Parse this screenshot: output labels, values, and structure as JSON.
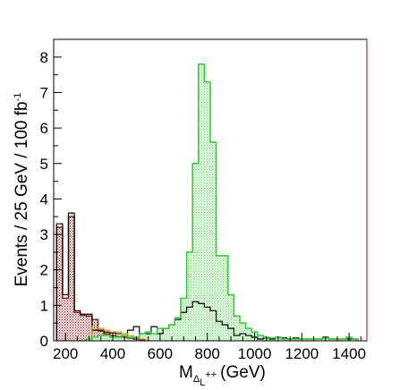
{
  "chart_data": {
    "type": "bar",
    "title": "",
    "xlabel": "M",
    "xlabel_sub": "Δ",
    "xlabel_subsub": "L",
    "xlabel_sup": "++",
    "xlabel_unit": "(GeV)",
    "ylabel": "Events / 25 GeV / 100 fb",
    "ylabel_sup": "-1",
    "xlim": [
      150,
      1475
    ],
    "ylim": [
      0,
      8.5
    ],
    "xticks": [
      "200",
      "400",
      "600",
      "800",
      "1000",
      "1200",
      "1400"
    ],
    "yticks": [
      "0",
      "1",
      "2",
      "3",
      "4",
      "5",
      "6",
      "7",
      "8"
    ],
    "bin_width": 25,
    "series": [
      {
        "color": "#8b1a1a",
        "fill": "hatched",
        "x": [
          175,
          200,
          225,
          250,
          275,
          300,
          325,
          350,
          375,
          400,
          425,
          450,
          475,
          500,
          525
        ],
        "values": [
          3.2,
          1.2,
          3.5,
          0.8,
          0.72,
          0.7,
          0.6,
          0.3,
          0.2,
          0.15,
          0.12,
          0.1,
          0.08,
          0.05,
          0.03
        ]
      },
      {
        "color": "#000000",
        "fill": "none",
        "x": [
          175,
          200,
          225,
          250,
          275,
          300,
          325,
          350,
          375,
          400,
          425,
          450,
          475,
          500,
          525,
          550,
          575,
          600,
          625,
          650,
          675,
          700,
          725,
          750,
          775,
          800,
          825,
          850,
          875,
          900,
          925,
          950,
          975,
          1000,
          1025,
          1050,
          1075,
          1100,
          1125,
          1150,
          1175,
          1200,
          1225,
          1250,
          1275,
          1300,
          1325,
          1350,
          1375,
          1400,
          1425
        ],
        "values": [
          3.3,
          1.3,
          3.6,
          0.85,
          0.75,
          0.75,
          0.3,
          0.28,
          0.25,
          0.22,
          0.2,
          0.2,
          0.3,
          0.4,
          0.2,
          0.2,
          0.4,
          0.2,
          0.35,
          0.45,
          0.6,
          0.8,
          0.95,
          1.1,
          1.05,
          0.95,
          0.85,
          0.55,
          0.45,
          0.35,
          0.15,
          0.2,
          0.15,
          0.1,
          0.05,
          0.08,
          0.05,
          0.1,
          0.08,
          0.05,
          0.08,
          0.05,
          0.05,
          0.05,
          0.05,
          0.1,
          0.05,
          0.05,
          0.05,
          0.05,
          0.05
        ]
      },
      {
        "color": "#c8a000",
        "fill": "none",
        "x": [
          325,
          350,
          375,
          400,
          425,
          450,
          475,
          500,
          525
        ],
        "values": [
          0.4,
          0.35,
          0.3,
          0.25,
          0.25,
          0.2,
          0.15,
          0.1,
          0.05
        ]
      },
      {
        "color": "#33cc33",
        "fill": "hatched-light",
        "x": [
          300,
          325,
          350,
          375,
          400,
          425,
          450,
          475,
          500,
          525,
          550,
          575,
          600,
          625,
          650,
          675,
          700,
          725,
          750,
          775,
          800,
          825,
          850,
          875,
          900,
          925,
          950,
          975,
          1000,
          1025,
          1050,
          1075,
          1100,
          1125,
          1150,
          1175,
          1200,
          1225,
          1250,
          1275,
          1300,
          1325,
          1350,
          1375,
          1400,
          1425
        ],
        "values": [
          0.05,
          0.1,
          0.15,
          0.15,
          0.1,
          0.1,
          0.15,
          0.1,
          0.1,
          0.2,
          0.25,
          0.2,
          0.35,
          0.35,
          0.45,
          0.65,
          1.2,
          2.5,
          5.0,
          7.8,
          7.3,
          5.6,
          2.4,
          2.4,
          1.3,
          0.7,
          0.5,
          0.35,
          0.25,
          0.15,
          0.1,
          0.08,
          0.1,
          0.05,
          0.05,
          0.05,
          0.05,
          0.05,
          0.05,
          0.05,
          0.08,
          0.05,
          0.05,
          0.05,
          0.1,
          0.05
        ]
      }
    ]
  }
}
